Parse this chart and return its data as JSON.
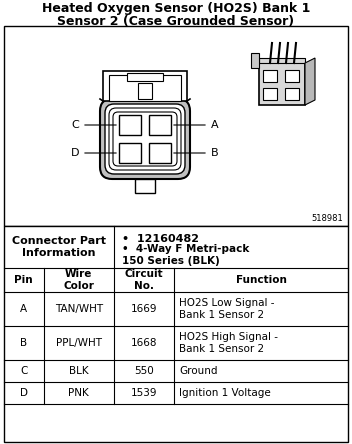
{
  "title_line1": "Heated Oxygen Sensor (HO2S) Bank 1",
  "title_line2": "Sensor 2 (Case Grounded Sensor)",
  "figure_number": "518981",
  "connector_info_label": "Connector Part\nInformation",
  "connector_info_bullets": [
    "12160482",
    "4-Way F Metri-pack\n150 Series (BLK)"
  ],
  "table_headers": [
    "Pin",
    "Wire\nColor",
    "Circuit\nNo.",
    "Function"
  ],
  "table_rows": [
    [
      "A",
      "TAN/WHT",
      "1669",
      "HO2S Low Signal -\nBank 1 Sensor 2"
    ],
    [
      "B",
      "PPL/WHT",
      "1668",
      "HO2S High Signal -\nBank 1 Sensor 2"
    ],
    [
      "C",
      "BLK",
      "550",
      "Ground"
    ],
    [
      "D",
      "PNK",
      "1539",
      "Ignition 1 Voltage"
    ]
  ],
  "bg_color": "#ffffff",
  "title_fontsize": 9.0,
  "table_fontsize": 7.5
}
